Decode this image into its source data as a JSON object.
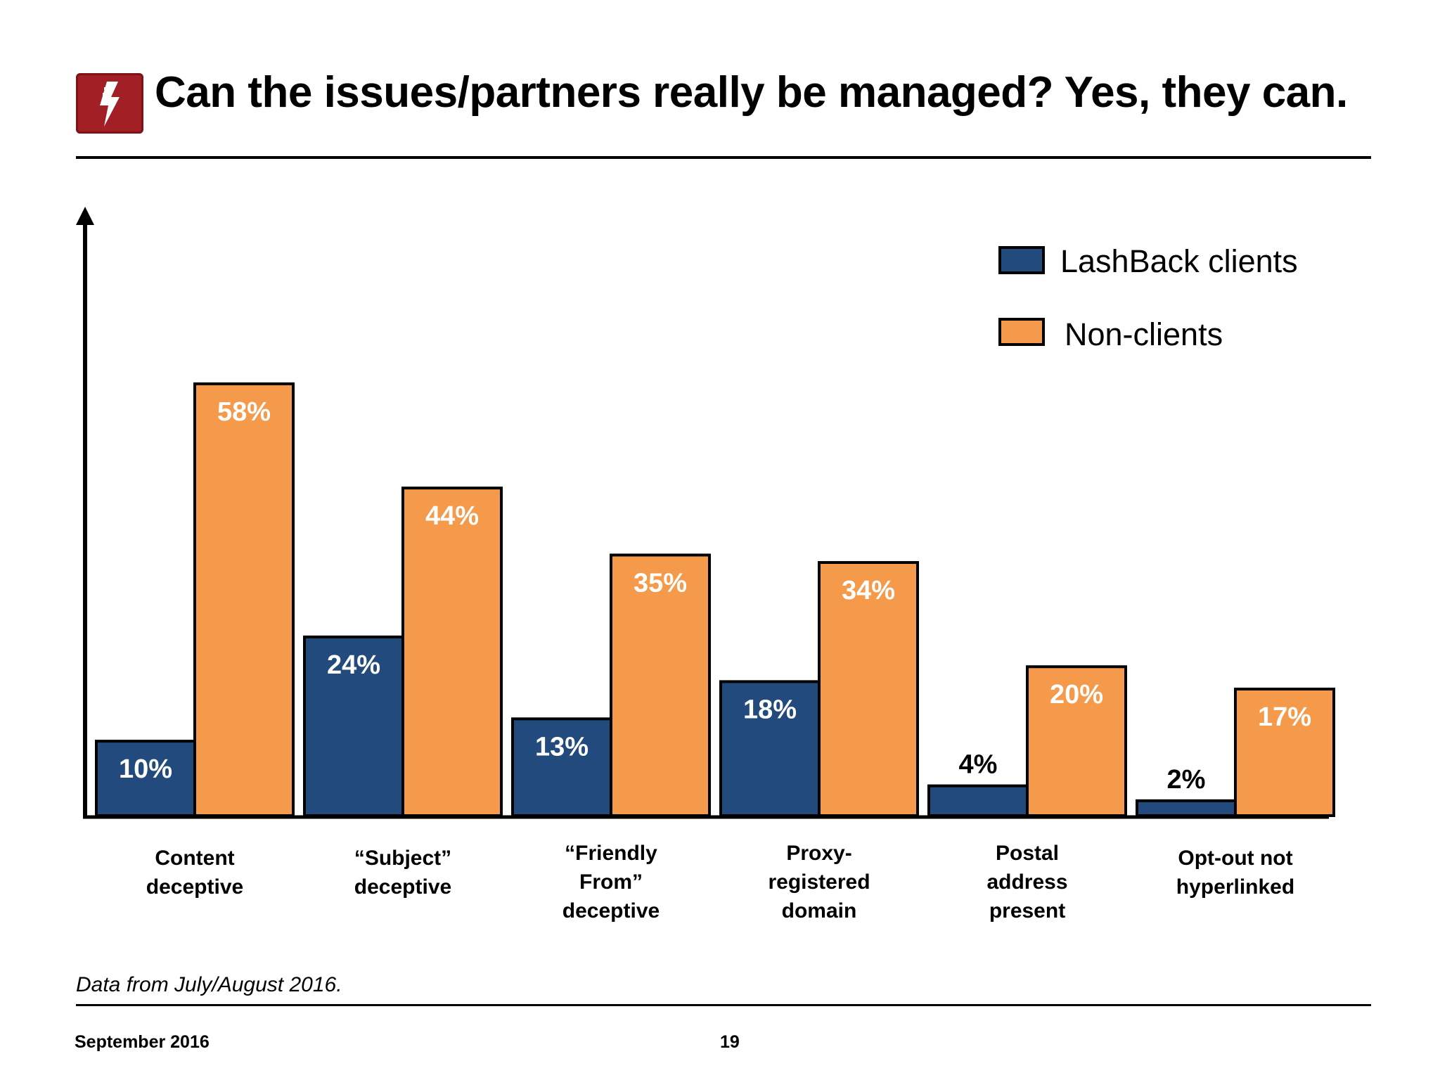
{
  "title": "Can the issues/partners really be managed? Yes, they can.",
  "logo": {
    "name": "lightning-bolt-logo",
    "color": "#a31f26"
  },
  "note": "Data from July/August 2016.",
  "footer": {
    "date": "September 2016",
    "page": "19"
  },
  "colors": {
    "lashback": "#234a7d",
    "nonclients": "#f5994a",
    "axis": "#000000"
  },
  "chart_data": {
    "type": "bar",
    "categories": [
      "Content\ndeceptive",
      "“Subject”\ndeceptive",
      "“Friendly\nFrom”\ndeceptive",
      "Proxy-\nregistered\ndomain",
      "Postal\naddress\npresent",
      "Opt-out not\nhyperlinked"
    ],
    "series": [
      {
        "name": "LashBack clients",
        "values": [
          10,
          24,
          13,
          18,
          4,
          2
        ],
        "labels": [
          "10%",
          "24%",
          "13%",
          "18%",
          "4%",
          "2%"
        ]
      },
      {
        "name": "Non-clients",
        "values": [
          58,
          44,
          35,
          34,
          20,
          17
        ],
        "labels": [
          "58%",
          "44%",
          "35%",
          "34%",
          "20%",
          "17%"
        ]
      }
    ],
    "xlabel": "",
    "ylabel": "",
    "ylim": [
      0,
      80
    ],
    "grid": false,
    "legend_position": "top-right"
  }
}
